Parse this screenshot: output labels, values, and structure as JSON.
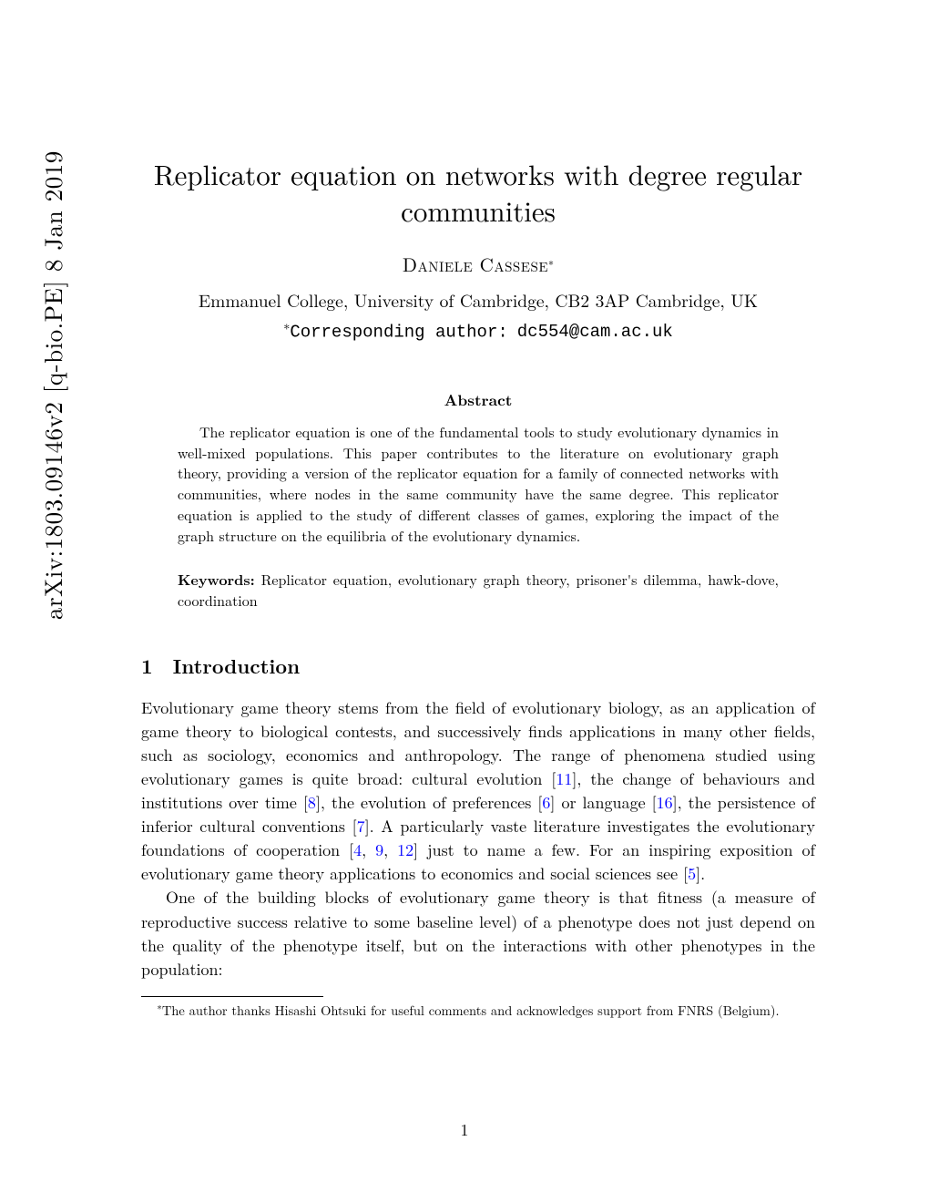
{
  "arxiv_stamp": "arXiv:1803.09146v2  [q-bio.PE]  8 Jan 2019",
  "title": "Replicator equation on networks with degree regular communities",
  "author": {
    "name": "Daniele Cassese",
    "marker": "∗",
    "affiliation": "Emmanuel College, University of Cambridge, CB2 3AP Cambridge, UK",
    "corresponding_label": "Corresponding author:",
    "email": "dc554@cam.ac.uk"
  },
  "abstract": {
    "heading": "Abstract",
    "text": "The replicator equation is one of the fundamental tools to study evolutionary dynamics in well-mixed populations. This paper contributes to the literature on evolutionary graph theory, providing a version of the replicator equation for a family of connected networks with communities, where nodes in the same community have the same degree. This replicator equation is applied to the study of different classes of games, exploring the impact of the graph structure on the equilibria of the evolutionary dynamics."
  },
  "keywords": {
    "label": "Keywords:",
    "text": " Replicator equation, evolutionary graph theory, prisoner's dilemma, hawk-dove, coordination"
  },
  "section": {
    "number": "1",
    "title": "Introduction"
  },
  "body": {
    "p1_a": "Evolutionary game theory stems from the field of evolutionary biology, as an application of game theory to biological contests, and successively finds applications in many other fields, such as sociology, economics and anthropology. The range of phenomena studied using evolutionary games is quite broad: cultural evolution [",
    "c11": "11",
    "p1_b": "], the change of behaviours and institutions over time [",
    "c8": "8",
    "p1_c": "], the evolution of preferences [",
    "c6": "6",
    "p1_d": "] or language [",
    "c16": "16",
    "p1_e": "], the persistence of inferior cultural conventions [",
    "c7": "7",
    "p1_f": "]. A particularly vaste literature investigates the evolutionary foundations of cooperation [",
    "c4": "4",
    "p1_g": ", ",
    "c9": "9",
    "p1_h": ", ",
    "c12": "12",
    "p1_i": "] just to name a few. For an inspiring exposition of evolutionary game theory applications to economics and social sciences see [",
    "c5": "5",
    "p1_j": "].",
    "p2": "One of the building blocks of evolutionary game theory is that fitness (a measure of reproductive success relative to some baseline level) of a phenotype does not just depend on the quality of the phenotype itself, but on the interactions with other phenotypes in the population:"
  },
  "footnote": {
    "marker": "∗",
    "text": "The author thanks Hisashi Ohtsuki for useful comments and acknowledges support from FNRS (Belgium)."
  },
  "page_number": "1",
  "colors": {
    "background": "#ffffff",
    "text": "#000000",
    "citation": "#0000ff"
  },
  "typography": {
    "title_fontsize": 31,
    "author_fontsize": 21,
    "body_fontsize": 18,
    "abstract_fontsize": 16,
    "footnote_fontsize": 14.5
  }
}
